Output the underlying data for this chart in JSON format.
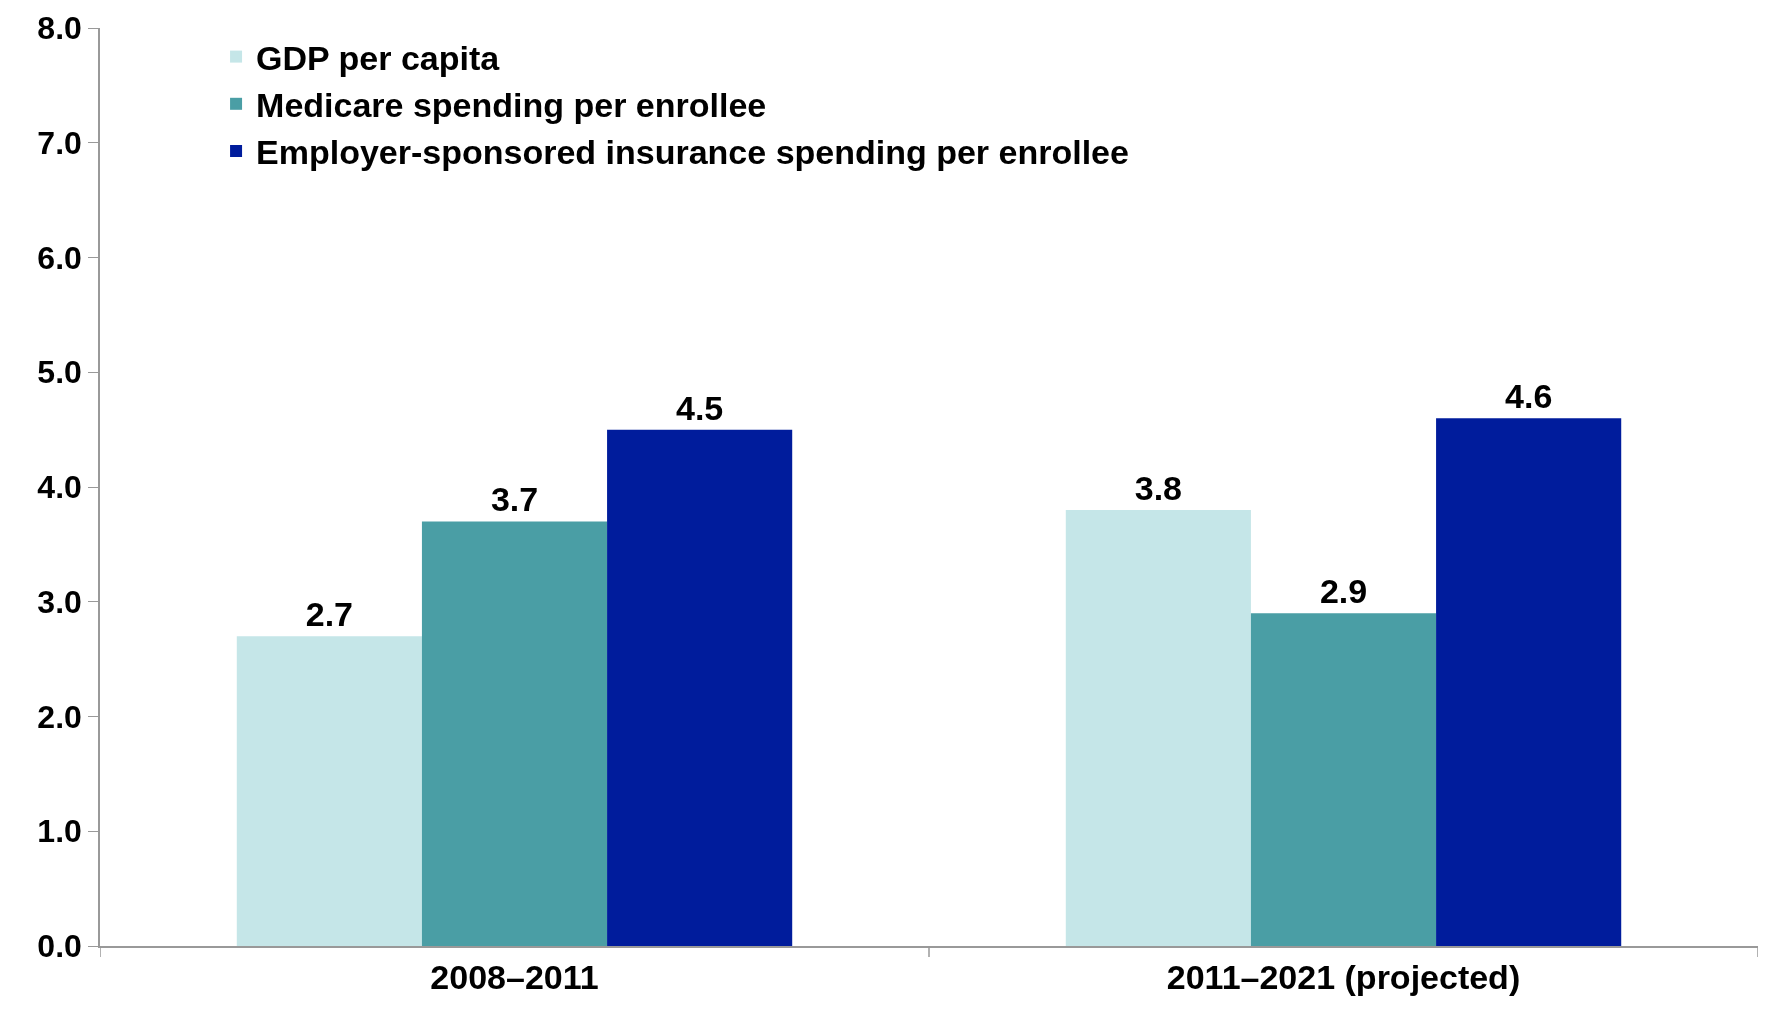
{
  "chart_data": {
    "type": "bar",
    "categories": [
      "2008–2011",
      "2011–2021 (projected)"
    ],
    "series": [
      {
        "name": "GDP per capita",
        "color": "#c5e6e8",
        "values": [
          2.7,
          3.8
        ]
      },
      {
        "name": "Medicare spending per enrollee",
        "color": "#4a9ea5",
        "values": [
          3.7,
          2.9
        ]
      },
      {
        "name": "Employer-sponsored insurance spending per enrollee",
        "color": "#001c9c",
        "values": [
          4.5,
          4.6
        ]
      }
    ],
    "ylim": [
      0,
      8
    ],
    "yticks": [
      {
        "value": 0,
        "label": "0.0"
      },
      {
        "value": 1,
        "label": "1.0"
      },
      {
        "value": 2,
        "label": "2.0"
      },
      {
        "value": 3,
        "label": "3.0"
      },
      {
        "value": 4,
        "label": "4.0"
      },
      {
        "value": 5,
        "label": "5.0"
      },
      {
        "value": 6,
        "label": "6.0"
      },
      {
        "value": 7,
        "label": "7.0"
      },
      {
        "value": 8,
        "label": "8.0"
      }
    ],
    "data_labels": true,
    "legend": "top left"
  }
}
